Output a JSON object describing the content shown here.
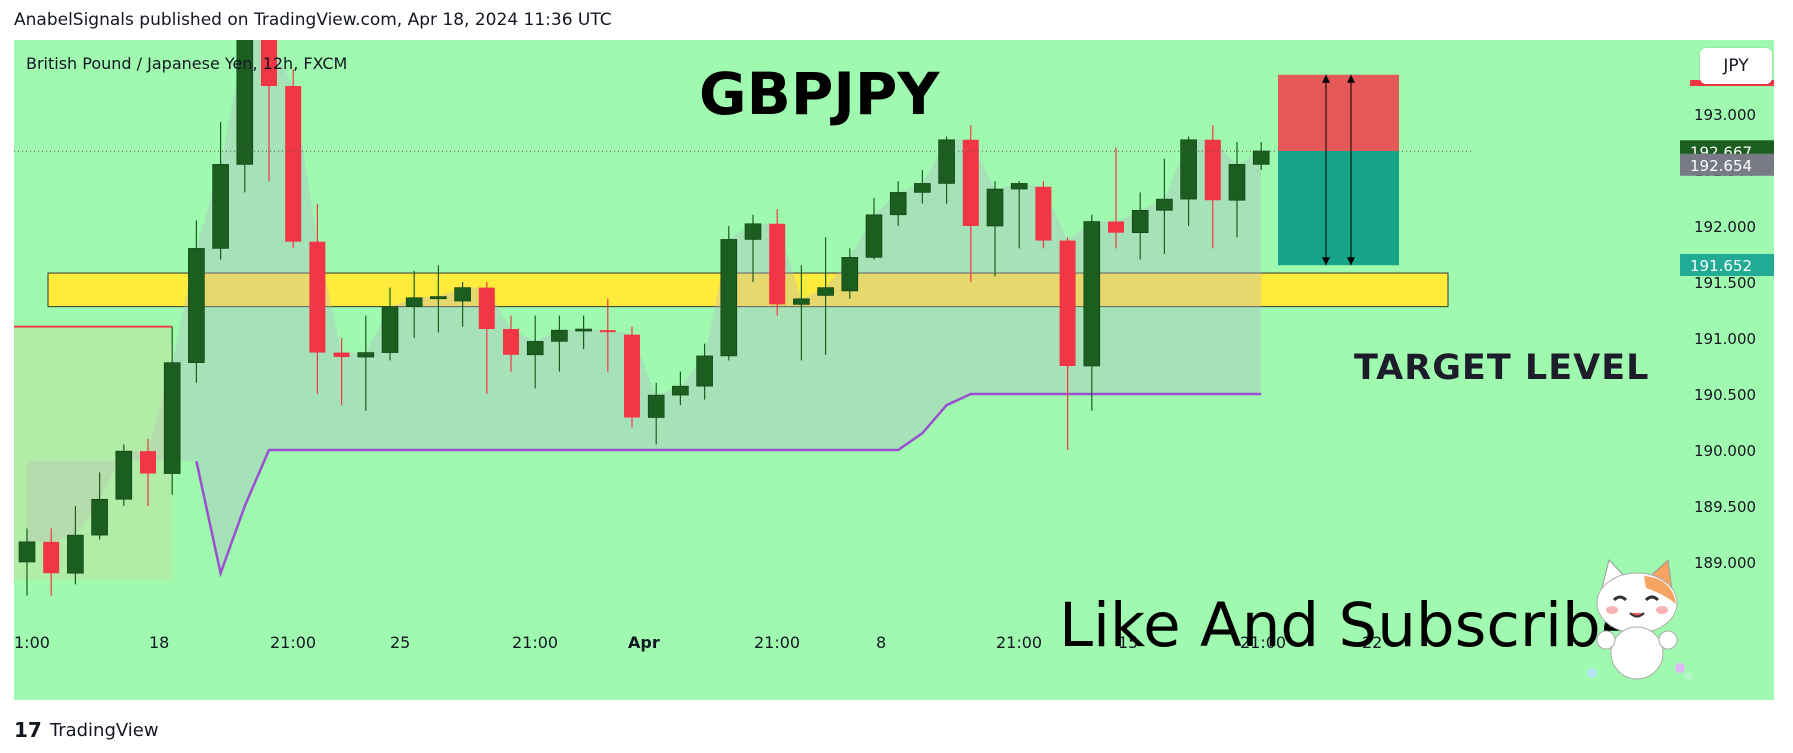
{
  "header": {
    "publish_line": "AnabelSignals published on TradingView.com, Apr 18, 2024 11:36 UTC"
  },
  "chart": {
    "symbol_line": "British Pound / Japanese Yen, 12h, FXCM",
    "title": "GBPJPY",
    "target_label": "TARGET LEVEL",
    "cta_label": "Like And Subscribe",
    "currency": "JPY"
  },
  "footer": {
    "brand": "TradingView"
  },
  "chart_data": {
    "type": "candlestick",
    "price_unit": "JPY",
    "y_ticks": [
      193.0,
      192.5,
      192.0,
      191.5,
      191.0,
      190.5,
      190.0,
      189.5,
      189.0
    ],
    "x_tick_labels": [
      "1:00",
      "18",
      "21:00",
      "25",
      "21:00",
      "Apr",
      "21:00",
      "8",
      "21:00",
      "15",
      "21:00",
      "22"
    ],
    "price_badges": [
      {
        "value": "192.667",
        "color": "#1b5e20"
      },
      {
        "value": "192.654",
        "color": "#787b86"
      },
      {
        "value": "191.652",
        "color": "#22ab94"
      }
    ],
    "support_zone": [
      191.28,
      191.58
    ],
    "candles": [
      {
        "o": 189.0,
        "h": 189.3,
        "l": 188.7,
        "c": 189.18
      },
      {
        "o": 189.18,
        "h": 189.3,
        "l": 188.7,
        "c": 188.9
      },
      {
        "o": 188.9,
        "h": 189.5,
        "l": 188.8,
        "c": 189.24
      },
      {
        "o": 189.24,
        "h": 189.8,
        "l": 189.2,
        "c": 189.56
      },
      {
        "o": 189.56,
        "h": 190.05,
        "l": 189.5,
        "c": 189.99
      },
      {
        "o": 189.99,
        "h": 190.1,
        "l": 189.5,
        "c": 189.79
      },
      {
        "o": 189.79,
        "h": 191.1,
        "l": 189.6,
        "c": 190.78
      },
      {
        "o": 190.78,
        "h": 192.05,
        "l": 190.6,
        "c": 191.8
      },
      {
        "o": 191.8,
        "h": 192.93,
        "l": 191.7,
        "c": 192.55
      },
      {
        "o": 192.55,
        "h": 193.7,
        "l": 192.3,
        "c": 193.67
      },
      {
        "o": 193.67,
        "h": 193.9,
        "l": 192.4,
        "c": 193.25
      },
      {
        "o": 193.25,
        "h": 193.4,
        "l": 191.8,
        "c": 191.86
      },
      {
        "o": 191.86,
        "h": 192.2,
        "l": 190.5,
        "c": 190.87
      },
      {
        "o": 190.87,
        "h": 191.0,
        "l": 190.4,
        "c": 190.83
      },
      {
        "o": 190.83,
        "h": 191.2,
        "l": 190.35,
        "c": 190.87
      },
      {
        "o": 190.87,
        "h": 191.45,
        "l": 190.8,
        "c": 191.28
      },
      {
        "o": 191.28,
        "h": 191.6,
        "l": 191.0,
        "c": 191.36
      },
      {
        "o": 191.35,
        "h": 191.65,
        "l": 191.05,
        "c": 191.37
      },
      {
        "o": 191.33,
        "h": 191.5,
        "l": 191.1,
        "c": 191.45
      },
      {
        "o": 191.45,
        "h": 191.5,
        "l": 190.5,
        "c": 191.08
      },
      {
        "o": 191.08,
        "h": 191.2,
        "l": 190.7,
        "c": 190.85
      },
      {
        "o": 190.85,
        "h": 191.2,
        "l": 190.55,
        "c": 190.97
      },
      {
        "o": 190.97,
        "h": 191.2,
        "l": 190.7,
        "c": 191.07
      },
      {
        "o": 191.07,
        "h": 191.2,
        "l": 190.9,
        "c": 191.08
      },
      {
        "o": 191.07,
        "h": 191.35,
        "l": 190.7,
        "c": 191.06
      },
      {
        "o": 191.03,
        "h": 191.1,
        "l": 190.2,
        "c": 190.29
      },
      {
        "o": 190.29,
        "h": 190.6,
        "l": 190.05,
        "c": 190.49
      },
      {
        "o": 190.49,
        "h": 190.7,
        "l": 190.4,
        "c": 190.57
      },
      {
        "o": 190.57,
        "h": 190.95,
        "l": 190.45,
        "c": 190.84
      },
      {
        "o": 190.84,
        "h": 192.0,
        "l": 190.8,
        "c": 191.88
      },
      {
        "o": 191.88,
        "h": 192.1,
        "l": 191.5,
        "c": 192.02
      },
      {
        "o": 192.02,
        "h": 192.15,
        "l": 191.2,
        "c": 191.3
      },
      {
        "o": 191.3,
        "h": 191.65,
        "l": 190.8,
        "c": 191.35
      },
      {
        "o": 191.38,
        "h": 191.9,
        "l": 190.85,
        "c": 191.45
      },
      {
        "o": 191.42,
        "h": 191.8,
        "l": 191.35,
        "c": 191.72
      },
      {
        "o": 191.72,
        "h": 192.25,
        "l": 191.7,
        "c": 192.1
      },
      {
        "o": 192.1,
        "h": 192.4,
        "l": 192.0,
        "c": 192.3
      },
      {
        "o": 192.3,
        "h": 192.5,
        "l": 192.2,
        "c": 192.38
      },
      {
        "o": 192.38,
        "h": 192.8,
        "l": 192.2,
        "c": 192.77
      },
      {
        "o": 192.77,
        "h": 192.9,
        "l": 191.5,
        "c": 192.0
      },
      {
        "o": 192.0,
        "h": 192.4,
        "l": 191.55,
        "c": 192.33
      },
      {
        "o": 192.33,
        "h": 192.4,
        "l": 191.8,
        "c": 192.38
      },
      {
        "o": 192.35,
        "h": 192.4,
        "l": 191.8,
        "c": 191.87
      },
      {
        "o": 191.87,
        "h": 191.9,
        "l": 190.0,
        "c": 190.75
      },
      {
        "o": 190.75,
        "h": 192.1,
        "l": 190.35,
        "c": 192.04
      },
      {
        "o": 192.04,
        "h": 192.7,
        "l": 191.8,
        "c": 191.94
      },
      {
        "o": 191.94,
        "h": 192.3,
        "l": 191.7,
        "c": 192.14
      },
      {
        "o": 192.14,
        "h": 192.6,
        "l": 191.75,
        "c": 192.24
      },
      {
        "o": 192.24,
        "h": 192.8,
        "l": 192.0,
        "c": 192.77
      },
      {
        "o": 192.77,
        "h": 192.9,
        "l": 191.8,
        "c": 192.23
      },
      {
        "o": 192.23,
        "h": 192.75,
        "l": 191.9,
        "c": 192.55
      },
      {
        "o": 192.55,
        "h": 192.75,
        "l": 192.5,
        "c": 192.67
      }
    ],
    "lower_band": [
      189.9,
      189.9,
      189.9,
      189.9,
      189.9,
      189.9,
      189.9,
      189.9,
      188.9,
      189.5,
      190.0,
      190.0,
      190.0,
      190.0,
      190.0,
      190.0,
      190.0,
      190.0,
      190.0,
      190.0,
      190.0,
      190.0,
      190.0,
      190.0,
      190.0,
      190.0,
      190.0,
      190.0,
      190.0,
      190.0,
      190.0,
      190.0,
      190.0,
      190.0,
      190.0,
      190.0,
      190.0,
      190.15,
      190.4,
      190.5,
      190.5,
      190.5,
      190.5,
      190.5,
      190.5,
      190.5,
      190.5,
      190.5,
      190.5,
      190.5,
      190.5,
      190.5
    ],
    "stop_zone": [
      192.67,
      193.35
    ],
    "target_zone": [
      191.65,
      192.67
    ]
  }
}
